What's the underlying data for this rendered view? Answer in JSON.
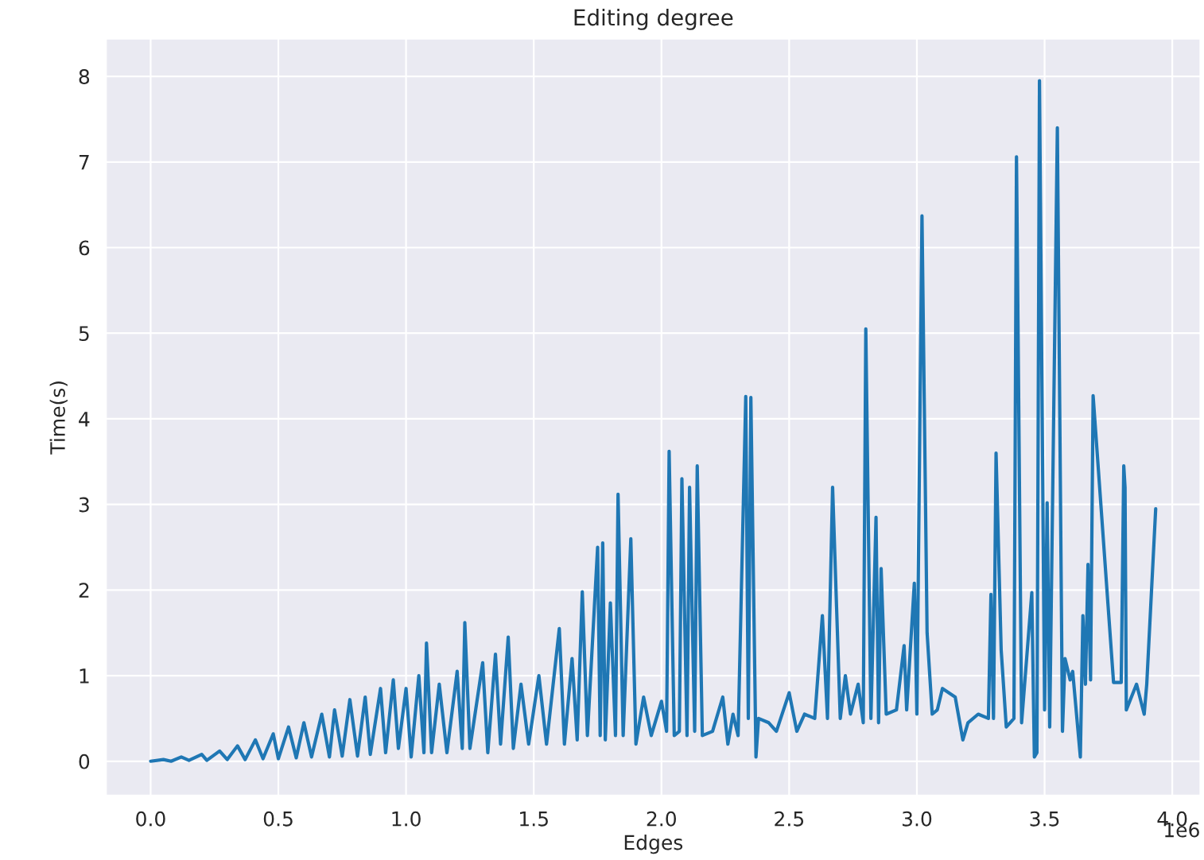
{
  "chart_data": {
    "type": "line",
    "title": "Editing degree",
    "xlabel": "Edges",
    "ylabel": "Time(s)",
    "color": "#1f77b4",
    "x": [
      0,
      0.05,
      0.08,
      0.12,
      0.15,
      0.2,
      0.22,
      0.27,
      0.3,
      0.34,
      0.37,
      0.41,
      0.44,
      0.48,
      0.5,
      0.54,
      0.57,
      0.6,
      0.63,
      0.67,
      0.7,
      0.72,
      0.75,
      0.78,
      0.81,
      0.84,
      0.86,
      0.9,
      0.92,
      0.95,
      0.97,
      1.0,
      1.02,
      1.05,
      1.07,
      1.08,
      1.1,
      1.13,
      1.16,
      1.2,
      1.22,
      1.23,
      1.25,
      1.3,
      1.32,
      1.35,
      1.37,
      1.4,
      1.42,
      1.45,
      1.48,
      1.52,
      1.55,
      1.6,
      1.62,
      1.65,
      1.67,
      1.69,
      1.71,
      1.75,
      1.76,
      1.77,
      1.78,
      1.8,
      1.82,
      1.83,
      1.85,
      1.88,
      1.9,
      1.93,
      1.96,
      2.0,
      2.02,
      2.03,
      2.05,
      2.07,
      2.08,
      2.1,
      2.11,
      2.13,
      2.14,
      2.16,
      2.2,
      2.24,
      2.26,
      2.28,
      2.3,
      2.33,
      2.34,
      2.35,
      2.37,
      2.38,
      2.42,
      2.45,
      2.5,
      2.53,
      2.56,
      2.6,
      2.63,
      2.65,
      2.67,
      2.7,
      2.72,
      2.74,
      2.77,
      2.79,
      2.8,
      2.82,
      2.84,
      2.85,
      2.86,
      2.88,
      2.92,
      2.95,
      2.96,
      2.99,
      3.0,
      3.02,
      3.04,
      3.06,
      3.08,
      3.1,
      3.15,
      3.18,
      3.2,
      3.24,
      3.28,
      3.29,
      3.3,
      3.31,
      3.33,
      3.35,
      3.38,
      3.39,
      3.41,
      3.45,
      3.46,
      3.47,
      3.48,
      3.5,
      3.51,
      3.52,
      3.55,
      3.57,
      3.58,
      3.6,
      3.61,
      3.64,
      3.65,
      3.66,
      3.67,
      3.68,
      3.69,
      3.77,
      3.8,
      3.81,
      3.815,
      3.82,
      3.86,
      3.89,
      3.9,
      3.935
    ],
    "values": [
      0,
      0.02,
      0.0,
      0.05,
      0.01,
      0.08,
      0.01,
      0.12,
      0.02,
      0.18,
      0.02,
      0.25,
      0.03,
      0.32,
      0.03,
      0.4,
      0.04,
      0.45,
      0.05,
      0.55,
      0.05,
      0.6,
      0.06,
      0.72,
      0.06,
      0.75,
      0.08,
      0.85,
      0.1,
      0.95,
      0.15,
      0.85,
      0.05,
      1.0,
      0.1,
      1.38,
      0.1,
      0.9,
      0.1,
      1.05,
      0.15,
      1.62,
      0.15,
      1.15,
      0.1,
      1.25,
      0.2,
      1.45,
      0.15,
      0.9,
      0.2,
      1.0,
      0.2,
      1.55,
      0.2,
      1.2,
      0.25,
      1.98,
      0.3,
      2.5,
      0.3,
      2.55,
      0.25,
      1.85,
      0.3,
      3.12,
      0.3,
      2.6,
      0.2,
      0.75,
      0.3,
      0.7,
      0.35,
      3.62,
      0.3,
      0.35,
      3.3,
      0.3,
      3.2,
      0.35,
      3.45,
      0.3,
      0.35,
      0.75,
      0.2,
      0.55,
      0.3,
      4.26,
      0.5,
      4.25,
      0.05,
      0.5,
      0.45,
      0.35,
      0.8,
      0.35,
      0.55,
      0.5,
      1.7,
      0.5,
      3.2,
      0.5,
      1.0,
      0.55,
      0.9,
      0.45,
      5.05,
      0.5,
      2.85,
      0.45,
      2.25,
      0.55,
      0.6,
      1.35,
      0.6,
      2.08,
      0.55,
      6.37,
      1.5,
      0.55,
      0.6,
      0.85,
      0.75,
      0.25,
      0.45,
      0.55,
      0.5,
      1.95,
      0.5,
      3.6,
      1.3,
      0.4,
      0.5,
      7.06,
      0.45,
      1.97,
      0.05,
      0.1,
      7.95,
      0.6,
      3.02,
      0.4,
      7.4,
      0.35,
      1.2,
      0.95,
      1.05,
      0.05,
      1.7,
      0.9,
      2.3,
      0.95,
      4.27,
      0.92,
      0.92,
      3.45,
      3.2,
      0.6,
      0.9,
      0.55,
      0.9,
      2.95
    ],
    "xlim": [
      -0.175,
      4.11
    ],
    "ylim": [
      -0.4,
      8.44
    ],
    "xticks": [
      {
        "value": 0,
        "label": "0.0"
      },
      0.5,
      {
        "value": 1,
        "label": "1.0"
      },
      1.5,
      {
        "value": 2,
        "label": "2.0"
      },
      2.5,
      {
        "value": 3,
        "label": "3.0"
      },
      3.5,
      {
        "value": 4,
        "label": "4.0"
      }
    ],
    "yticks": [
      0,
      1,
      2,
      3,
      4,
      5,
      6,
      7,
      8
    ],
    "annotations": [
      "1e6"
    ],
    "grid": true
  }
}
